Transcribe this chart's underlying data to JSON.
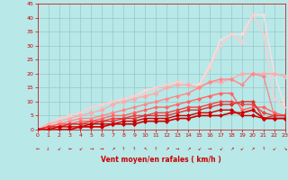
{
  "xlabel": "Vent moyen/en rafales ( km/h )",
  "xlim": [
    0,
    23
  ],
  "ylim": [
    0,
    45
  ],
  "xticks": [
    0,
    1,
    2,
    3,
    4,
    5,
    6,
    7,
    8,
    9,
    10,
    11,
    12,
    13,
    14,
    15,
    16,
    17,
    18,
    19,
    20,
    21,
    22,
    23
  ],
  "yticks": [
    0,
    5,
    10,
    15,
    20,
    25,
    30,
    35,
    40,
    45
  ],
  "background_color": "#b8e8e8",
  "grid_color": "#9ac8c8",
  "series": [
    {
      "x": [
        0,
        1,
        2,
        3,
        4,
        5,
        6,
        7,
        8,
        9,
        10,
        11,
        12,
        13,
        14,
        15,
        16,
        17,
        18,
        19,
        20,
        21,
        22,
        23
      ],
      "y": [
        0,
        0,
        0,
        0,
        1,
        1,
        1,
        2,
        2,
        2,
        3,
        3,
        3,
        4,
        4,
        5,
        5,
        5,
        6,
        6,
        7,
        4,
        4,
        4
      ],
      "color": "#cc0000",
      "linewidth": 1.2,
      "marker": "D",
      "markersize": 2.0,
      "zorder": 10
    },
    {
      "x": [
        0,
        1,
        2,
        3,
        4,
        5,
        6,
        7,
        8,
        9,
        10,
        11,
        12,
        13,
        14,
        15,
        16,
        17,
        18,
        19,
        20,
        21,
        22,
        23
      ],
      "y": [
        0,
        0,
        1,
        1,
        1,
        2,
        2,
        2,
        3,
        3,
        4,
        4,
        4,
        5,
        5,
        6,
        6,
        7,
        7,
        5,
        5,
        4,
        4,
        4
      ],
      "color": "#cc0000",
      "linewidth": 1.0,
      "marker": "D",
      "markersize": 2.0,
      "zorder": 9
    },
    {
      "x": [
        0,
        1,
        2,
        3,
        4,
        5,
        6,
        7,
        8,
        9,
        10,
        11,
        12,
        13,
        14,
        15,
        16,
        17,
        18,
        19,
        20,
        21,
        22,
        23
      ],
      "y": [
        0,
        1,
        1,
        2,
        2,
        2,
        3,
        3,
        4,
        4,
        5,
        5,
        5,
        6,
        7,
        7,
        8,
        9,
        9,
        10,
        10,
        4,
        5,
        5
      ],
      "color": "#dd3333",
      "linewidth": 1.0,
      "marker": "D",
      "markersize": 2.0,
      "zorder": 8
    },
    {
      "x": [
        0,
        1,
        2,
        3,
        4,
        5,
        6,
        7,
        8,
        9,
        10,
        11,
        12,
        13,
        14,
        15,
        16,
        17,
        18,
        19,
        20,
        21,
        22,
        23
      ],
      "y": [
        0,
        1,
        1,
        2,
        2,
        3,
        3,
        4,
        4,
        5,
        5,
        6,
        6,
        7,
        8,
        8,
        9,
        10,
        10,
        9,
        9,
        6,
        5,
        5
      ],
      "color": "#ee4444",
      "linewidth": 1.0,
      "marker": "D",
      "markersize": 2.0,
      "zorder": 7
    },
    {
      "x": [
        0,
        1,
        2,
        3,
        4,
        5,
        6,
        7,
        8,
        9,
        10,
        11,
        12,
        13,
        14,
        15,
        16,
        17,
        18,
        19,
        20,
        21,
        22,
        23
      ],
      "y": [
        0,
        1,
        2,
        2,
        3,
        3,
        4,
        5,
        5,
        6,
        7,
        8,
        8,
        9,
        10,
        11,
        12,
        13,
        13,
        7,
        8,
        8,
        6,
        5
      ],
      "color": "#ff6666",
      "linewidth": 1.0,
      "marker": "D",
      "markersize": 2.0,
      "zorder": 6
    },
    {
      "x": [
        0,
        1,
        2,
        3,
        4,
        5,
        6,
        7,
        8,
        9,
        10,
        11,
        12,
        13,
        14,
        15,
        16,
        17,
        18,
        19,
        20,
        21,
        22,
        23
      ],
      "y": [
        0,
        1,
        2,
        3,
        4,
        4,
        5,
        6,
        7,
        8,
        9,
        10,
        11,
        12,
        13,
        15,
        17,
        18,
        18,
        16,
        20,
        19,
        5,
        5
      ],
      "color": "#ff8888",
      "linewidth": 1.0,
      "marker": "D",
      "markersize": 2.0,
      "zorder": 5
    },
    {
      "x": [
        0,
        1,
        2,
        3,
        4,
        5,
        6,
        7,
        8,
        9,
        10,
        11,
        12,
        13,
        14,
        15,
        16,
        17,
        18,
        19,
        20,
        21,
        22,
        23
      ],
      "y": [
        0,
        2,
        3,
        4,
        5,
        6,
        7,
        9,
        10,
        11,
        12,
        13,
        15,
        16,
        16,
        15,
        17,
        17,
        18,
        20,
        20,
        20,
        20,
        19
      ],
      "color": "#ffaaaa",
      "linewidth": 1.0,
      "marker": "D",
      "markersize": 2.5,
      "zorder": 4
    },
    {
      "x": [
        0,
        1,
        2,
        3,
        4,
        5,
        6,
        7,
        8,
        9,
        10,
        11,
        12,
        13,
        14,
        15,
        16,
        17,
        18,
        19,
        20,
        21,
        22,
        23
      ],
      "y": [
        0,
        2,
        4,
        5,
        6,
        8,
        9,
        10,
        11,
        12,
        13,
        15,
        16,
        17,
        16,
        15,
        22,
        30,
        34,
        31,
        41,
        34,
        11,
        8
      ],
      "color": "#ffcccc",
      "linewidth": 1.0,
      "marker": "x",
      "markersize": 3.5,
      "zorder": 3
    },
    {
      "x": [
        0,
        1,
        2,
        3,
        4,
        5,
        6,
        7,
        8,
        9,
        10,
        11,
        12,
        13,
        14,
        15,
        16,
        17,
        18,
        19,
        20,
        21,
        22,
        23
      ],
      "y": [
        0,
        2,
        4,
        5,
        6,
        8,
        9,
        10,
        11,
        12,
        14,
        15,
        16,
        17,
        16,
        16,
        23,
        32,
        34,
        34,
        41,
        41,
        20,
        8
      ],
      "color": "#ffdddd",
      "linewidth": 1.0,
      "marker": "x",
      "markersize": 3.5,
      "zorder": 2
    }
  ],
  "wind_arrows": [
    "←",
    "↓",
    "↙",
    "←",
    "↙",
    "→",
    "→",
    "↗",
    "↑",
    "↑",
    "↖",
    "↑",
    "↗",
    "→",
    "↗",
    "↙",
    "→",
    "↙",
    "↗",
    "↙",
    "↗",
    "↑",
    "↙",
    "↘"
  ]
}
